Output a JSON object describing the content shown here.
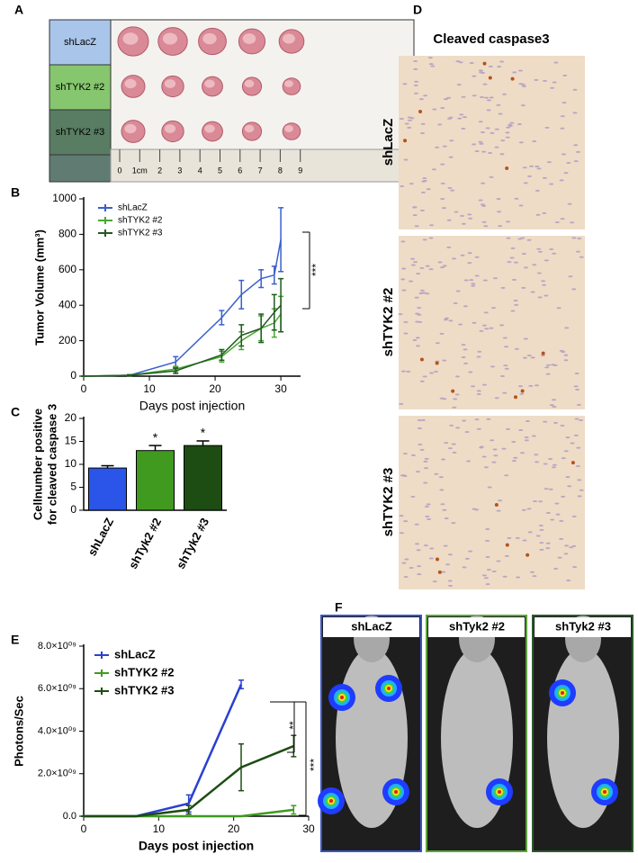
{
  "panel_a": {
    "letter": "A",
    "rows": [
      "shLacZ",
      "shTYK2 #2",
      "shTYK2 #3"
    ],
    "ruler": [
      "0",
      "1cm",
      "2",
      "3",
      "4",
      "5",
      "6",
      "7",
      "8",
      "9"
    ]
  },
  "panel_d": {
    "letter": "D",
    "title": "Cleaved caspase3",
    "rows": [
      "shLacZ",
      "shTYK2 #2",
      "shTYK2 #3"
    ]
  },
  "panel_f": {
    "letter": "F",
    "labels": [
      "shLacZ",
      "shTyk2 #2",
      "shTyk2 #3"
    ]
  },
  "chart_data": [
    {
      "type": "line",
      "letter": "B",
      "xlabel": "Days post injection",
      "ylabel": "Tumor Volume (mm³)",
      "xlim": [
        0,
        33
      ],
      "xticks": [
        0,
        10,
        20,
        30
      ],
      "ylim": [
        0,
        1000
      ],
      "yticks": [
        0,
        200,
        400,
        600,
        800,
        1000
      ],
      "legend": "upper left",
      "annotations": [
        "***"
      ],
      "series": [
        {
          "name": "shLacZ",
          "color": "#3a5fcd",
          "x": [
            0,
            7,
            14,
            21,
            24,
            27,
            29,
            30
          ],
          "values": [
            0,
            5,
            80,
            330,
            460,
            550,
            570,
            770
          ],
          "errors": [
            0,
            3,
            30,
            40,
            80,
            50,
            50,
            180
          ]
        },
        {
          "name": "shTYK2 #2",
          "color": "#4aa832",
          "x": [
            0,
            7,
            14,
            21,
            24,
            27,
            29,
            30
          ],
          "values": [
            0,
            5,
            40,
            110,
            200,
            270,
            300,
            350
          ],
          "errors": [
            0,
            3,
            15,
            30,
            50,
            70,
            80,
            100
          ]
        },
        {
          "name": "shTYK2 #3",
          "color": "#1f5a1f",
          "x": [
            0,
            7,
            14,
            21,
            24,
            27,
            29,
            30
          ],
          "values": [
            0,
            5,
            30,
            120,
            230,
            270,
            360,
            400
          ],
          "errors": [
            0,
            3,
            15,
            30,
            60,
            80,
            100,
            150
          ]
        }
      ]
    },
    {
      "type": "bar",
      "letter": "C",
      "ylabel": [
        "Cellnumber positive",
        "for cleaved caspase 3"
      ],
      "categories": [
        "shLacZ",
        "shTyk2 #2",
        "shTyk2 #3"
      ],
      "values": [
        9.2,
        13.0,
        14.1
      ],
      "errors": [
        0.5,
        1.1,
        1.0
      ],
      "colors": [
        "#2a55e8",
        "#3f9a1f",
        "#1d4d12"
      ],
      "significance": [
        null,
        "*",
        "*"
      ],
      "ylim": [
        0,
        20
      ],
      "yticks": [
        0,
        5,
        10,
        15,
        20
      ]
    },
    {
      "type": "line",
      "letter": "E",
      "xlabel": "Days post injection",
      "ylabel": "Photons/Sec",
      "xlim": [
        0,
        30
      ],
      "xticks": [
        0,
        10,
        20,
        30
      ],
      "ylim": [
        0,
        8000000000
      ],
      "yticks": [
        {
          "value": 0,
          "label": "0.0"
        },
        {
          "value": 2000000000,
          "label": "2.0×10⁰⁹"
        },
        {
          "value": 4000000000,
          "label": "4.0×10⁰⁹"
        },
        {
          "value": 6000000000,
          "label": "6.0×10⁰⁹"
        },
        {
          "value": 8000000000,
          "label": "8.0×10⁰⁹"
        }
      ],
      "legend": "upper left",
      "annotations": [
        "**",
        "***"
      ],
      "series": [
        {
          "name": "shLacZ",
          "color": "#2a40d0",
          "x": [
            0,
            7,
            14,
            21
          ],
          "values": [
            0,
            0,
            600000000,
            6200000000
          ],
          "errors": [
            0,
            0,
            400000000,
            200000000
          ]
        },
        {
          "name": "shTYK2 #2",
          "color": "#3f9a1f",
          "x": [
            0,
            7,
            14,
            21,
            28
          ],
          "values": [
            0,
            0,
            0,
            0,
            300000000
          ],
          "errors": [
            0,
            0,
            0,
            0,
            200000000
          ]
        },
        {
          "name": "shTYK2 #3",
          "color": "#1d4d12",
          "x": [
            0,
            7,
            14,
            21,
            28
          ],
          "values": [
            0,
            0,
            300000000,
            2300000000,
            3300000000
          ],
          "errors": [
            0,
            0,
            200000000,
            1100000000,
            500000000
          ]
        }
      ]
    }
  ]
}
